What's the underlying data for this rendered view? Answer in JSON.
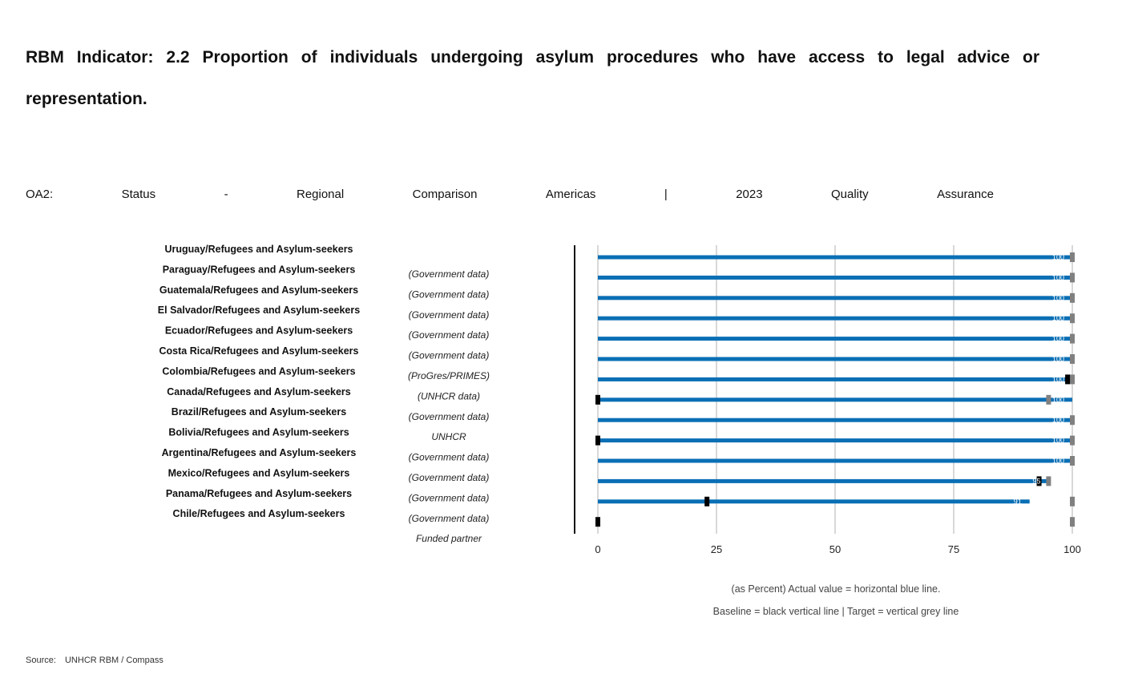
{
  "header": {
    "title": "RBM Indicator: 2.2 Proportion of individuals undergoing asylum procedures who have access to legal advice or representation.",
    "subtitle": "OA2: Status - Regional Comparison Americas | 2023 Quality Assurance"
  },
  "legend": {
    "line1": "(as Percent) Actual value = horizontal blue line.",
    "line2": "Baseline = black vertical line | Target = vertical grey line"
  },
  "source": {
    "label": "Source:",
    "text": "UNHCR RBM / Compass"
  },
  "colors": {
    "actual": "#0a6fb5",
    "baseline": "#000000",
    "target": "#808080",
    "grid": "#cccccc"
  },
  "chart_data": {
    "type": "bar",
    "orientation": "horizontal",
    "xlim": [
      0,
      100
    ],
    "xticks": [
      "0",
      "25",
      "50",
      "75",
      "100"
    ],
    "grid": true,
    "categories": [
      "Uruguay/Refugees and Asylum-seekers",
      "Paraguay/Refugees and Asylum-seekers",
      "Guatemala/Refugees and Asylum-seekers",
      "El Salvador/Refugees and Asylum-seekers",
      "Ecuador/Refugees and Asylum-seekers",
      "Costa Rica/Refugees and Asylum-seekers",
      "Colombia/Refugees and Asylum-seekers",
      "Canada/Refugees and Asylum-seekers",
      "Brazil/Refugees and Asylum-seekers",
      "Bolivia/Refugees and Asylum-seekers",
      "Argentina/Refugees and Asylum-seekers",
      "Mexico/Refugees and Asylum-seekers",
      "Panama/Refugees and Asylum-seekers",
      "Chile/Refugees and Asylum-seekers"
    ],
    "data_sources": [
      "(Government data)",
      "(Government data)",
      "(Government data)",
      "(Government data)",
      "(Government data)",
      "(ProGres/PRIMES)",
      "(UNHCR data)",
      "(Government data)",
      "UNHCR",
      "(Government data)",
      "(Government data)",
      "(Government data)",
      "(Government data)",
      "Funded partner"
    ],
    "series": [
      {
        "name": "Actual",
        "values": [
          100,
          100,
          100,
          100,
          100,
          100,
          100,
          100,
          100,
          100,
          100,
          95,
          91,
          null
        ]
      },
      {
        "name": "Baseline",
        "values": [
          null,
          null,
          null,
          null,
          null,
          null,
          99,
          0,
          null,
          0,
          null,
          93,
          23,
          0
        ]
      },
      {
        "name": "Target",
        "values": [
          100,
          100,
          100,
          100,
          100,
          100,
          100,
          95,
          100,
          100,
          100,
          95,
          100,
          100
        ]
      }
    ],
    "value_labels": [
      "100",
      "100",
      "100",
      "100",
      "100",
      "100",
      "100",
      "100",
      "100",
      "100",
      "100",
      "95",
      "91",
      ""
    ]
  }
}
